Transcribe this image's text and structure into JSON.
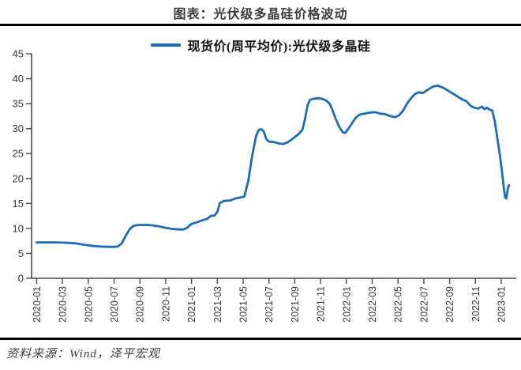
{
  "header": {
    "title": "图表：光伏级多晶硅价格波动"
  },
  "legend": {
    "label": "现货价(周平均价):光伏级多晶硅"
  },
  "footer": {
    "source": "资料来源：Wind，泽平宏观"
  },
  "colors": {
    "line": "#1a6cbf",
    "axis": "#4a4a4a",
    "tick_text": "#383838",
    "rule": "#000000"
  },
  "chart_data": {
    "type": "line",
    "title": "图表：光伏级多晶硅价格波动",
    "xlabel": "",
    "ylabel": "",
    "x_unit": "months since 2020-01",
    "ylim": [
      0,
      45
    ],
    "yticks": [
      0,
      5,
      10,
      15,
      20,
      25,
      30,
      35,
      40,
      45
    ],
    "x_tick_positions": [
      0,
      2,
      4,
      6,
      8,
      10,
      12,
      14,
      16,
      18,
      20,
      22,
      24,
      26,
      28,
      30,
      32,
      34,
      36
    ],
    "x_tick_labels": [
      "2020-01",
      "2020-03",
      "2020-05",
      "2020-07",
      "2020-09",
      "2020-11",
      "2021-01",
      "2021-03",
      "2021-05",
      "2021-07",
      "2021-09",
      "2021-11",
      "2022-01",
      "2022-03",
      "2022-05",
      "2022-07",
      "2022-09",
      "2022-11",
      "2023-01"
    ],
    "legend_position": "top-center",
    "grid": false,
    "series": [
      {
        "name": "现货价(周平均价):光伏级多晶硅",
        "color": "#1a6cbf",
        "points": [
          [
            0,
            7.2
          ],
          [
            0.5,
            7.2
          ],
          [
            1,
            7.2
          ],
          [
            1.5,
            7.2
          ],
          [
            2,
            7.15
          ],
          [
            2.5,
            7.1
          ],
          [
            3,
            7.0
          ],
          [
            3.5,
            6.8
          ],
          [
            4,
            6.6
          ],
          [
            4.5,
            6.45
          ],
          [
            5,
            6.35
          ],
          [
            5.5,
            6.3
          ],
          [
            6,
            6.3
          ],
          [
            6.3,
            6.4
          ],
          [
            6.6,
            7.0
          ],
          [
            6.9,
            8.5
          ],
          [
            7.2,
            9.8
          ],
          [
            7.5,
            10.5
          ],
          [
            7.8,
            10.65
          ],
          [
            8,
            10.7
          ],
          [
            8.5,
            10.7
          ],
          [
            9,
            10.6
          ],
          [
            9.5,
            10.4
          ],
          [
            10,
            10.1
          ],
          [
            10.5,
            9.9
          ],
          [
            11,
            9.8
          ],
          [
            11.4,
            9.8
          ],
          [
            11.7,
            10.2
          ],
          [
            12,
            10.9
          ],
          [
            12.4,
            11.2
          ],
          [
            12.8,
            11.6
          ],
          [
            13.2,
            11.9
          ],
          [
            13.5,
            12.5
          ],
          [
            13.8,
            12.6
          ],
          [
            14,
            13.3
          ],
          [
            14.2,
            15.1
          ],
          [
            14.5,
            15.5
          ],
          [
            15,
            15.6
          ],
          [
            15.4,
            16.0
          ],
          [
            15.8,
            16.2
          ],
          [
            16.1,
            16.4
          ],
          [
            16.4,
            19.5
          ],
          [
            16.7,
            24.5
          ],
          [
            17,
            28.5
          ],
          [
            17.2,
            29.7
          ],
          [
            17.4,
            29.9
          ],
          [
            17.6,
            29.4
          ],
          [
            17.8,
            27.9
          ],
          [
            18,
            27.4
          ],
          [
            18.4,
            27.3
          ],
          [
            18.8,
            27.0
          ],
          [
            19.1,
            26.9
          ],
          [
            19.4,
            27.2
          ],
          [
            19.7,
            27.7
          ],
          [
            20,
            28.3
          ],
          [
            20.3,
            28.9
          ],
          [
            20.6,
            29.8
          ],
          [
            20.8,
            32.0
          ],
          [
            21,
            34.8
          ],
          [
            21.2,
            35.8
          ],
          [
            21.5,
            36.0
          ],
          [
            21.8,
            36.1
          ],
          [
            22.1,
            36.0
          ],
          [
            22.4,
            35.7
          ],
          [
            22.7,
            35.0
          ],
          [
            22.9,
            33.9
          ],
          [
            23.1,
            32.4
          ],
          [
            23.4,
            30.6
          ],
          [
            23.7,
            29.3
          ],
          [
            23.9,
            29.1
          ],
          [
            24.1,
            29.8
          ],
          [
            24.4,
            30.9
          ],
          [
            24.7,
            32.1
          ],
          [
            25,
            32.8
          ],
          [
            25.4,
            33.0
          ],
          [
            25.8,
            33.2
          ],
          [
            26.2,
            33.3
          ],
          [
            26.6,
            33.0
          ],
          [
            27,
            32.9
          ],
          [
            27.4,
            32.5
          ],
          [
            27.8,
            32.3
          ],
          [
            28.1,
            32.7
          ],
          [
            28.4,
            33.6
          ],
          [
            28.7,
            35.0
          ],
          [
            29,
            36.1
          ],
          [
            29.3,
            36.9
          ],
          [
            29.6,
            37.3
          ],
          [
            29.9,
            37.1
          ],
          [
            30.2,
            37.6
          ],
          [
            30.5,
            38.1
          ],
          [
            30.8,
            38.5
          ],
          [
            31.1,
            38.6
          ],
          [
            31.4,
            38.3
          ],
          [
            31.7,
            37.9
          ],
          [
            32,
            37.4
          ],
          [
            32.4,
            36.8
          ],
          [
            32.7,
            36.3
          ],
          [
            33,
            35.8
          ],
          [
            33.3,
            35.5
          ],
          [
            33.6,
            34.6
          ],
          [
            33.9,
            34.2
          ],
          [
            34.2,
            34.0
          ],
          [
            34.5,
            34.4
          ],
          [
            34.7,
            33.9
          ],
          [
            34.9,
            34.2
          ],
          [
            35.1,
            33.8
          ],
          [
            35.3,
            33.6
          ],
          [
            35.5,
            31.5
          ],
          [
            35.7,
            28.0
          ],
          [
            35.9,
            24.5
          ],
          [
            36.05,
            21.5
          ],
          [
            36.2,
            18.0
          ],
          [
            36.3,
            16.2
          ],
          [
            36.4,
            16.0
          ],
          [
            36.5,
            17.9
          ],
          [
            36.6,
            18.7
          ]
        ]
      }
    ]
  }
}
